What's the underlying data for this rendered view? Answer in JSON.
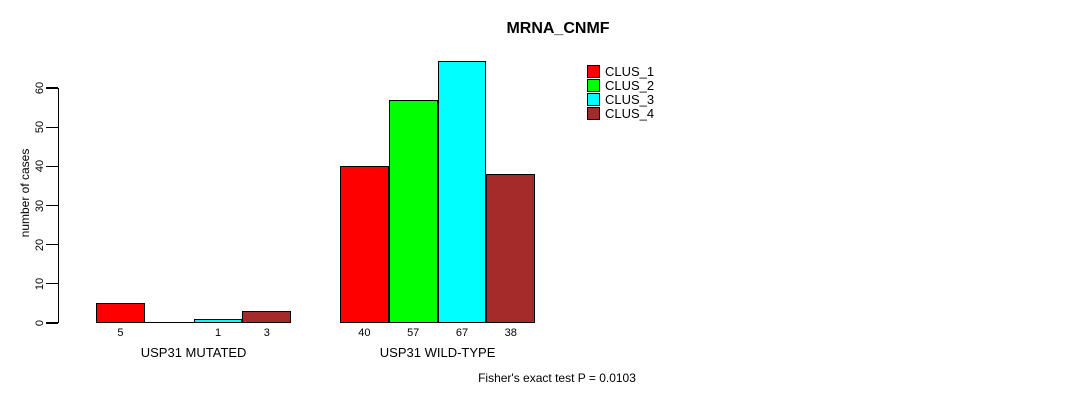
{
  "chart_data": {
    "type": "bar",
    "title": "MRNA_CNMF",
    "ylabel": "number of cases",
    "xlabel": "",
    "ylim": [
      0,
      67
    ],
    "yticks": [
      0,
      10,
      20,
      30,
      40,
      50,
      60
    ],
    "grid": false,
    "legend_position": "top-right",
    "background_color": "#FFFFFF",
    "axis_color": "#000000",
    "categories": [
      "USP31 MUTATED",
      "USP31 WILD-TYPE"
    ],
    "series": [
      {
        "name": "CLUS_1",
        "color": "#FF0000",
        "values": [
          5,
          40
        ]
      },
      {
        "name": "CLUS_2",
        "color": "#00FF00",
        "values": [
          0,
          57
        ]
      },
      {
        "name": "CLUS_3",
        "color": "#00FFFF",
        "values": [
          1,
          67
        ]
      },
      {
        "name": "CLUS_4",
        "color": "#A52A2A",
        "values": [
          3,
          38
        ]
      }
    ],
    "bar_value_labels": [
      [
        "5",
        "",
        "1",
        "3"
      ],
      [
        "40",
        "57",
        "67",
        "38"
      ]
    ],
    "annotation": "Fisher's exact test P = 0.0103"
  }
}
